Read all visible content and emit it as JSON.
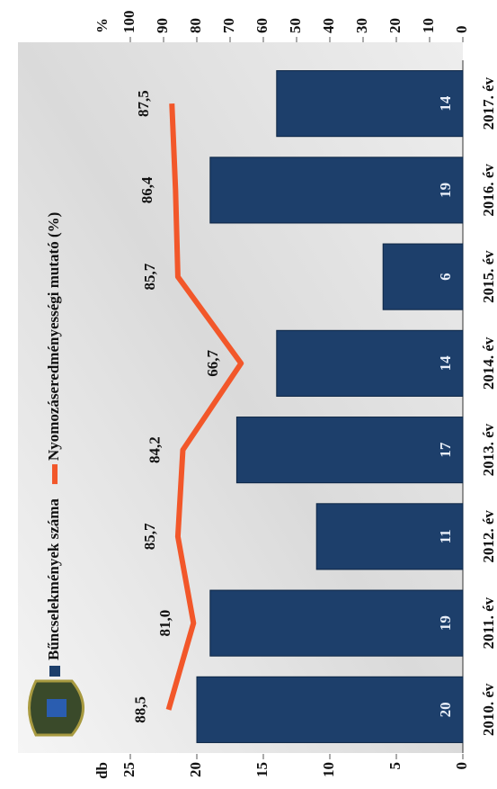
{
  "chart_data": {
    "type": "bar-line",
    "y_label": "db",
    "y2_label": "%",
    "categories": [
      "2010. év",
      "2011. év",
      "2012. év",
      "2013. év",
      "2014. év",
      "2015. év",
      "2016. év",
      "2017. év"
    ],
    "series": [
      {
        "name": "Bűncselekmények száma",
        "type": "bar",
        "color": "#1d3f6b",
        "values": [
          20,
          19,
          11,
          17,
          14,
          6,
          19,
          14
        ]
      },
      {
        "name": "Nyomozáseredményességi mutató (%)",
        "type": "line",
        "axis": "y2",
        "color": "#f2572a",
        "values": [
          88.5,
          81.0,
          85.7,
          84.2,
          66.7,
          85.7,
          86.4,
          87.5
        ],
        "value_labels": [
          "88,5",
          "81,0",
          "85,7",
          "84,2",
          "66,7",
          "85,7",
          "86,4",
          "87,5"
        ]
      }
    ],
    "ylim": [
      0,
      25
    ],
    "yticks": [
      0,
      5,
      10,
      15,
      20,
      25
    ],
    "y2lim": [
      0,
      100
    ],
    "y2ticks": [
      0,
      10,
      20,
      30,
      40,
      50,
      60,
      70,
      80,
      90,
      100
    ],
    "legend": "top-left"
  }
}
